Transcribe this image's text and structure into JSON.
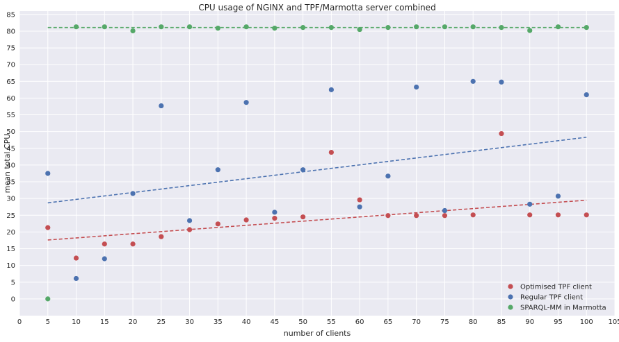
{
  "chart_data": {
    "type": "scatter",
    "title": "CPU usage of NGINX and TPF/Marmotta server combined",
    "xlabel": "number of clients",
    "ylabel": "mean total CPU",
    "xlim": [
      0,
      105
    ],
    "ylim": [
      -5,
      86
    ],
    "x_ticks": [
      "0",
      "5",
      "10",
      "15",
      "20",
      "25",
      "30",
      "35",
      "40",
      "45",
      "50",
      "55",
      "60",
      "65",
      "70",
      "75",
      "80",
      "85",
      "90",
      "95",
      "100",
      "105"
    ],
    "y_ticks": [
      "0",
      "5",
      "10",
      "15",
      "20",
      "25",
      "30",
      "35",
      "40",
      "45",
      "50",
      "55",
      "60",
      "65",
      "70",
      "75",
      "80",
      "85"
    ],
    "grid": true,
    "legend_position": "bottom-right",
    "background": "#eaeaf2",
    "series": [
      {
        "name": "Optimised TPF client",
        "color": "#c44e52",
        "x": [
          5,
          10,
          15,
          20,
          25,
          30,
          35,
          40,
          45,
          50,
          55,
          60,
          65,
          70,
          75,
          80,
          85,
          90,
          95,
          100
        ],
        "y": [
          21.3,
          12.2,
          16.4,
          16.4,
          18.6,
          20.7,
          22.4,
          23.6,
          24.1,
          24.5,
          43.8,
          29.6,
          24.9,
          24.9,
          24.9,
          25.1,
          49.4,
          25.1,
          25.1,
          25.1
        ],
        "trend": [
          17.6,
          29.5
        ]
      },
      {
        "name": "Regular TPF client",
        "color": "#4c72b0",
        "x": [
          5,
          10,
          15,
          20,
          25,
          30,
          35,
          40,
          45,
          50,
          55,
          60,
          65,
          70,
          75,
          80,
          85,
          90,
          95,
          100
        ],
        "y": [
          37.5,
          6.1,
          12.0,
          31.5,
          57.7,
          23.4,
          38.6,
          58.7,
          25.9,
          38.6,
          62.5,
          27.5,
          36.7,
          63.3,
          26.4,
          65.0,
          64.8,
          28.3,
          30.7,
          61.0
        ],
        "trend": [
          28.7,
          48.3
        ]
      },
      {
        "name": "SPARQL-MM in Marmotta",
        "color": "#55a868",
        "x": [
          5,
          10,
          15,
          20,
          25,
          30,
          35,
          40,
          45,
          50,
          55,
          60,
          65,
          70,
          75,
          80,
          85,
          90,
          95,
          100
        ],
        "y": [
          0.0,
          81.3,
          81.3,
          80.1,
          81.3,
          81.3,
          80.9,
          81.3,
          80.9,
          81.1,
          81.1,
          80.5,
          81.1,
          81.3,
          81.3,
          81.3,
          81.1,
          80.2,
          81.3,
          81.1
        ],
        "trend": [
          81.1,
          81.1
        ]
      }
    ]
  }
}
